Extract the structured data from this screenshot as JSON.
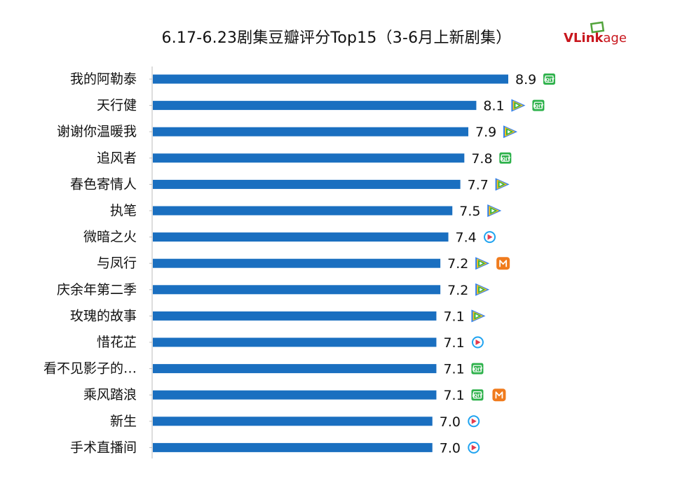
{
  "header": {
    "title": "6.17-6.23剧集豆瓣评分Top15（3-6月上新剧集）",
    "brand": {
      "part1": "VL",
      "part2": "ink",
      "part3": "age"
    }
  },
  "colors": {
    "bar": "#1a6fc0",
    "axis": "#bbbbbb",
    "iqiyi": "#2fb24c",
    "tencent_blue": "#2f7ff0",
    "tencent_yellow": "#f5c21b",
    "tencent_green": "#2bb24c",
    "youku_red": "#e43b4e",
    "youku_blue": "#1fa3f0",
    "mgtv": "#f07b1d",
    "brand_red": "#c8161d",
    "brand_green": "#52a33b"
  },
  "chart_data": {
    "type": "bar",
    "orientation": "horizontal",
    "title": "6.17-6.23剧集豆瓣评分Top15（3-6月上新剧集）",
    "xlabel": "",
    "ylabel": "",
    "xlim": [
      0,
      8.9
    ],
    "grid": false,
    "categories": [
      "我的阿勒泰",
      "天行健",
      "谢谢你温暖我",
      "追风者",
      "春色寄情人",
      "执笔",
      "微暗之火",
      "与凤行",
      "庆余年第二季",
      "玫瑰的故事",
      "惜花芷",
      "看不见影子的…",
      "乘风踏浪",
      "新生",
      "手术直播间"
    ],
    "values": [
      8.9,
      8.1,
      7.9,
      7.8,
      7.7,
      7.5,
      7.4,
      7.2,
      7.2,
      7.1,
      7.1,
      7.1,
      7.1,
      7.0,
      7.0
    ],
    "value_labels": [
      "8.9",
      "8.1",
      "7.9",
      "7.8",
      "7.7",
      "7.5",
      "7.4",
      "7.2",
      "7.2",
      "7.1",
      "7.1",
      "7.1",
      "7.1",
      "7.0",
      "7.0"
    ],
    "platforms": [
      [
        "iqiyi-icon"
      ],
      [
        "tencent-video-icon",
        "iqiyi-icon"
      ],
      [
        "tencent-video-icon"
      ],
      [
        "iqiyi-icon"
      ],
      [
        "tencent-video-icon"
      ],
      [
        "tencent-video-icon"
      ],
      [
        "youku-icon"
      ],
      [
        "tencent-video-icon",
        "mgtv-icon"
      ],
      [
        "tencent-video-icon"
      ],
      [
        "tencent-video-icon"
      ],
      [
        "youku-icon"
      ],
      [
        "iqiyi-icon"
      ],
      [
        "iqiyi-icon",
        "mgtv-icon"
      ],
      [
        "youku-icon"
      ],
      [
        "youku-icon"
      ]
    ]
  }
}
